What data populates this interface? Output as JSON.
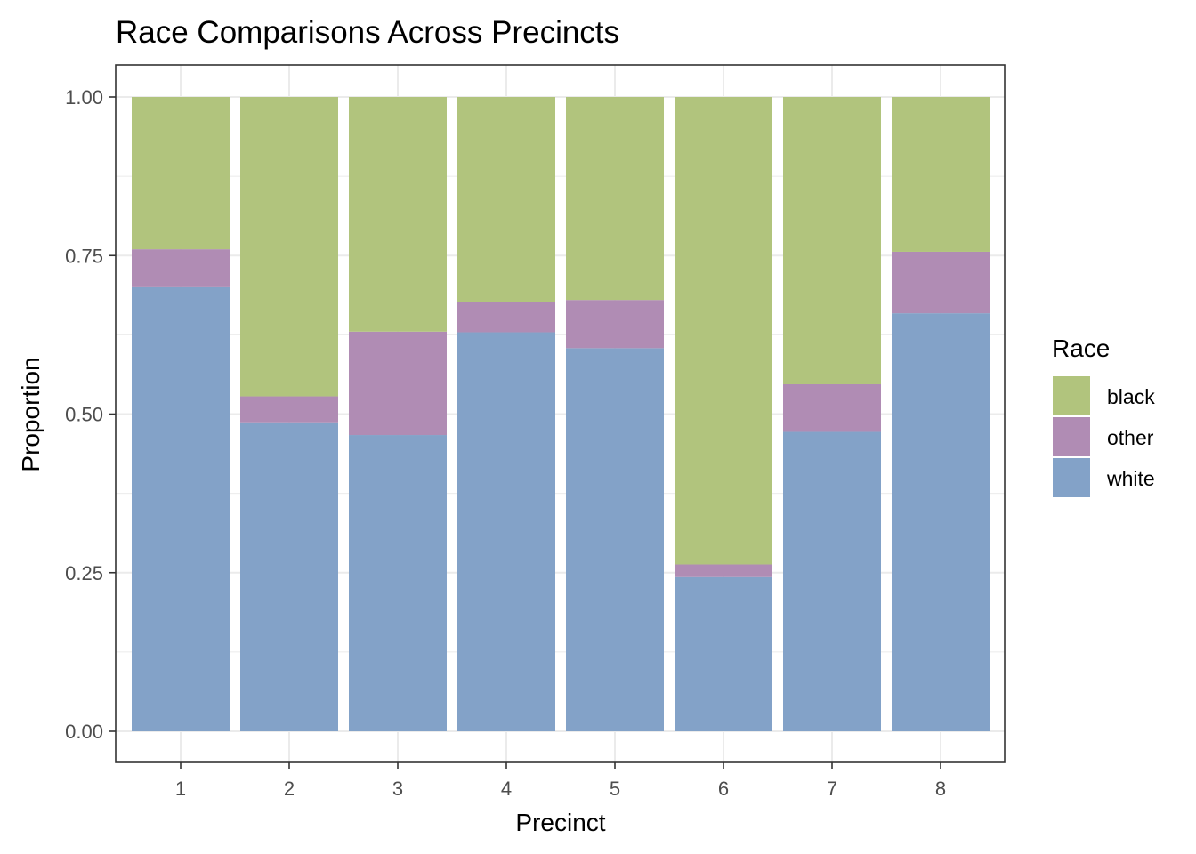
{
  "chart_data": {
    "type": "bar",
    "stacked": true,
    "title": "Race Comparisons Across Precincts",
    "xlabel": "Precinct",
    "ylabel": "Proportion",
    "categories": [
      "1",
      "2",
      "3",
      "4",
      "5",
      "6",
      "7",
      "8"
    ],
    "ylim": [
      0,
      1
    ],
    "yticks": [
      "0.00",
      "0.25",
      "0.50",
      "0.75",
      "1.00"
    ],
    "grid": true,
    "legend": {
      "title": "Race",
      "position": "right",
      "items": [
        "black",
        "other",
        "white"
      ]
    },
    "series": [
      {
        "name": "white",
        "color": "#83a2c8",
        "values": [
          0.7,
          0.487,
          0.467,
          0.629,
          0.604,
          0.243,
          0.472,
          0.659
        ]
      },
      {
        "name": "other",
        "color": "#b08cb4",
        "values": [
          0.06,
          0.041,
          0.163,
          0.048,
          0.076,
          0.02,
          0.075,
          0.097
        ]
      },
      {
        "name": "black",
        "color": "#b1c47d",
        "values": [
          0.24,
          0.472,
          0.37,
          0.323,
          0.32,
          0.737,
          0.453,
          0.244
        ]
      }
    ]
  }
}
